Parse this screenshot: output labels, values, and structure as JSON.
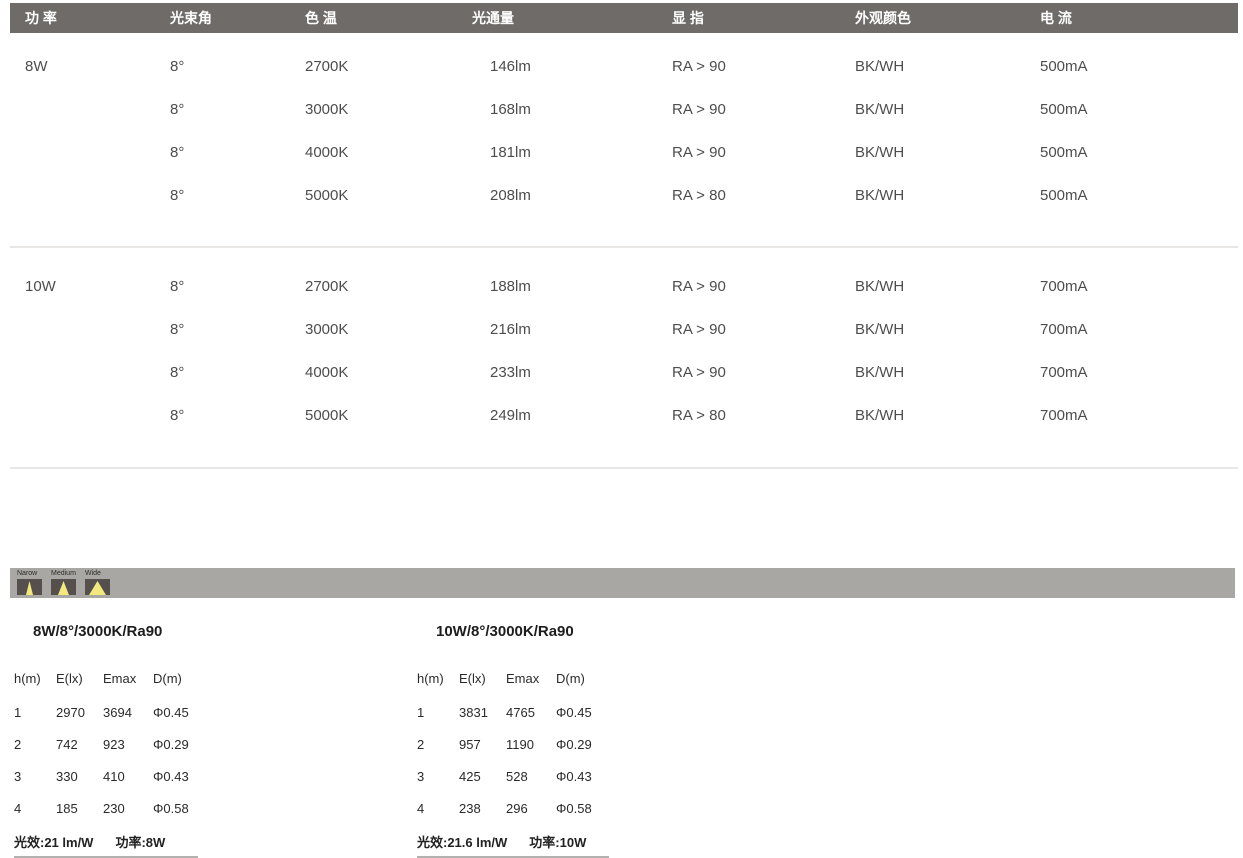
{
  "spec_table": {
    "headers": {
      "power": "功 率",
      "beam_angle": "光束角",
      "cct": "色 温",
      "flux": "光通量",
      "cri": "显 指",
      "appearance_color": "外观颜色",
      "current": "电 流"
    },
    "groups": [
      {
        "power": "8W",
        "rows": [
          {
            "beam": "8°",
            "cct": "2700K",
            "flux": "146lm",
            "cri": "RA > 90",
            "color": "BK/WH",
            "current": "500mA"
          },
          {
            "beam": "8°",
            "cct": "3000K",
            "flux": "168lm",
            "cri": "RA > 90",
            "color": "BK/WH",
            "current": "500mA"
          },
          {
            "beam": "8°",
            "cct": "4000K",
            "flux": "181lm",
            "cri": "RA > 90",
            "color": "BK/WH",
            "current": "500mA"
          },
          {
            "beam": "8°",
            "cct": "5000K",
            "flux": "208lm",
            "cri": "RA > 80",
            "color": "BK/WH",
            "current": "500mA"
          }
        ]
      },
      {
        "power": "10W",
        "rows": [
          {
            "beam": "8°",
            "cct": "2700K",
            "flux": "188lm",
            "cri": "RA > 90",
            "color": "BK/WH",
            "current": "700mA"
          },
          {
            "beam": "8°",
            "cct": "3000K",
            "flux": "216lm",
            "cri": "RA > 90",
            "color": "BK/WH",
            "current": "700mA"
          },
          {
            "beam": "8°",
            "cct": "4000K",
            "flux": "233lm",
            "cri": "RA > 90",
            "color": "BK/WH",
            "current": "700mA"
          },
          {
            "beam": "8°",
            "cct": "5000K",
            "flux": "249lm",
            "cri": "RA > 80",
            "color": "BK/WH",
            "current": "700mA"
          }
        ]
      }
    ]
  },
  "beam_bar": {
    "icons": [
      {
        "label": "Narow",
        "type": "narrow-beam-icon"
      },
      {
        "label": "Medium",
        "type": "medium-beam-icon"
      },
      {
        "label": "Wide",
        "type": "wide-beam-icon"
      }
    ]
  },
  "photometric_tables": [
    {
      "title": "8W/8°/3000K/Ra90",
      "headers": [
        "h(m)",
        "E(lx)",
        "Emax",
        "D(m)"
      ],
      "rows": [
        [
          "1",
          "2970",
          "3694",
          "Φ0.45"
        ],
        [
          "2",
          "742",
          "923",
          "Φ0.29"
        ],
        [
          "3",
          "330",
          "410",
          "Φ0.43"
        ],
        [
          "4",
          "185",
          "230",
          "Φ0.58"
        ]
      ],
      "footer": {
        "efficacy": "光效:21 lm/W",
        "power": "功率:8W"
      }
    },
    {
      "title": "10W/8°/3000K/Ra90",
      "headers": [
        "h(m)",
        "E(lx)",
        "Emax",
        "D(m)"
      ],
      "rows": [
        [
          "1",
          "3831",
          "4765",
          "Φ0.45"
        ],
        [
          "2",
          "957",
          "1190",
          "Φ0.29"
        ],
        [
          "3",
          "425",
          "528",
          "Φ0.43"
        ],
        [
          "4",
          "238",
          "296",
          "Φ0.58"
        ]
      ],
      "footer": {
        "efficacy": "光效:21.6 lm/W",
        "power": "功率:10W"
      }
    }
  ],
  "colors": {
    "header_bar": "#6f6b68",
    "header_text": "#ffffff",
    "body_text": "#4d4d4d",
    "separator": "#e9e7e5",
    "beam_bar": "#a9a7a4",
    "beam_box": "#55504d",
    "beam_cone": "#f2e87d",
    "footer_underline": "#b3b1af"
  }
}
